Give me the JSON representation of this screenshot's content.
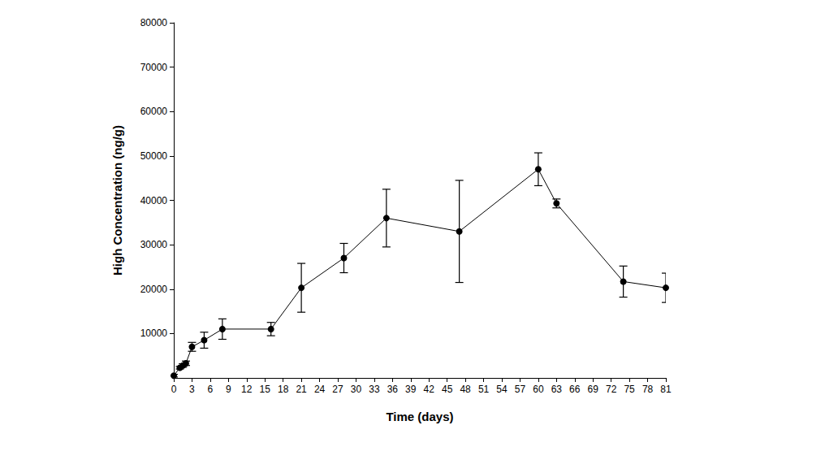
{
  "chart_data": {
    "type": "line",
    "x_label": "Time (days)",
    "y_label": "High Concentration (ng/g)",
    "x": [
      0,
      1,
      1.5,
      2,
      3,
      5,
      8,
      16,
      21,
      28,
      35,
      47,
      60,
      63,
      74,
      81
    ],
    "values": [
      500,
      2300,
      2800,
      3300,
      7000,
      8500,
      11000,
      11000,
      20300,
      27000,
      36000,
      33000,
      47000,
      39300,
      21700,
      20300
    ],
    "errors": [
      300,
      300,
      400,
      500,
      1000,
      1800,
      2300,
      1500,
      5500,
      3300,
      6500,
      11500,
      3700,
      1000,
      3500,
      3300
    ],
    "color": "#000000",
    "marker": "circle",
    "line_style": "solid",
    "xlim": [
      0,
      81
    ],
    "xticks": [
      0,
      3,
      6,
      9,
      12,
      15,
      18,
      21,
      24,
      27,
      30,
      33,
      36,
      39,
      42,
      45,
      48,
      51,
      54,
      57,
      60,
      63,
      66,
      69,
      72,
      75,
      78,
      81
    ],
    "ylim": [
      0,
      80000
    ],
    "yticks": [
      10000,
      20000,
      30000,
      40000,
      50000,
      60000,
      70000,
      80000
    ],
    "grid": false
  }
}
